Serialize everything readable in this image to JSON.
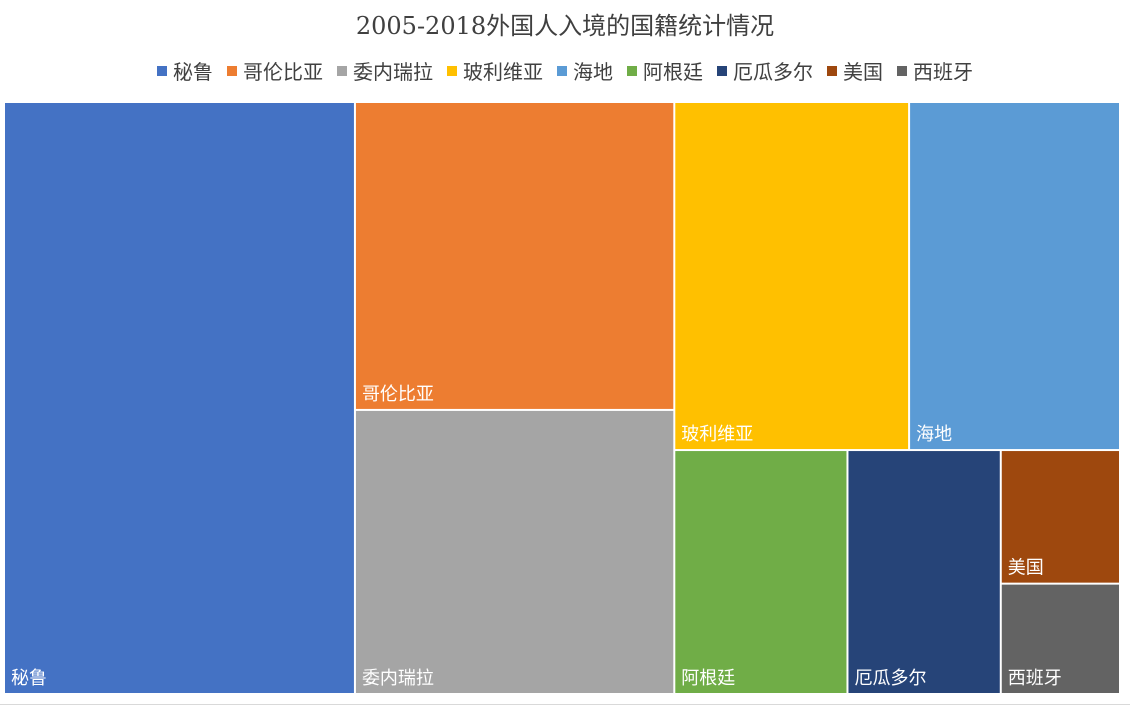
{
  "chart_data": {
    "type": "treemap",
    "title": "2005-2018外国人入境的国籍统计情况",
    "legend_position": "top",
    "series": [
      {
        "name": "秘鲁",
        "value": 30.0,
        "color": "#4472C4"
      },
      {
        "name": "哥伦比亚",
        "value": 14.2,
        "color": "#ED7D31"
      },
      {
        "name": "委内瑞拉",
        "value": 13.1,
        "color": "#A5A5A5"
      },
      {
        "name": "玻利维亚",
        "value": 11.8,
        "color": "#FFC000"
      },
      {
        "name": "海地",
        "value": 10.6,
        "color": "#5B9BD5"
      },
      {
        "name": "阿根廷",
        "value": 6.1,
        "color": "#70AD47"
      },
      {
        "name": "厄瓜多尔",
        "value": 5.4,
        "color": "#264478"
      },
      {
        "name": "美国",
        "value": 2.3,
        "color": "#9E480E"
      },
      {
        "name": "西班牙",
        "value": 1.9,
        "color": "#636363"
      }
    ]
  }
}
